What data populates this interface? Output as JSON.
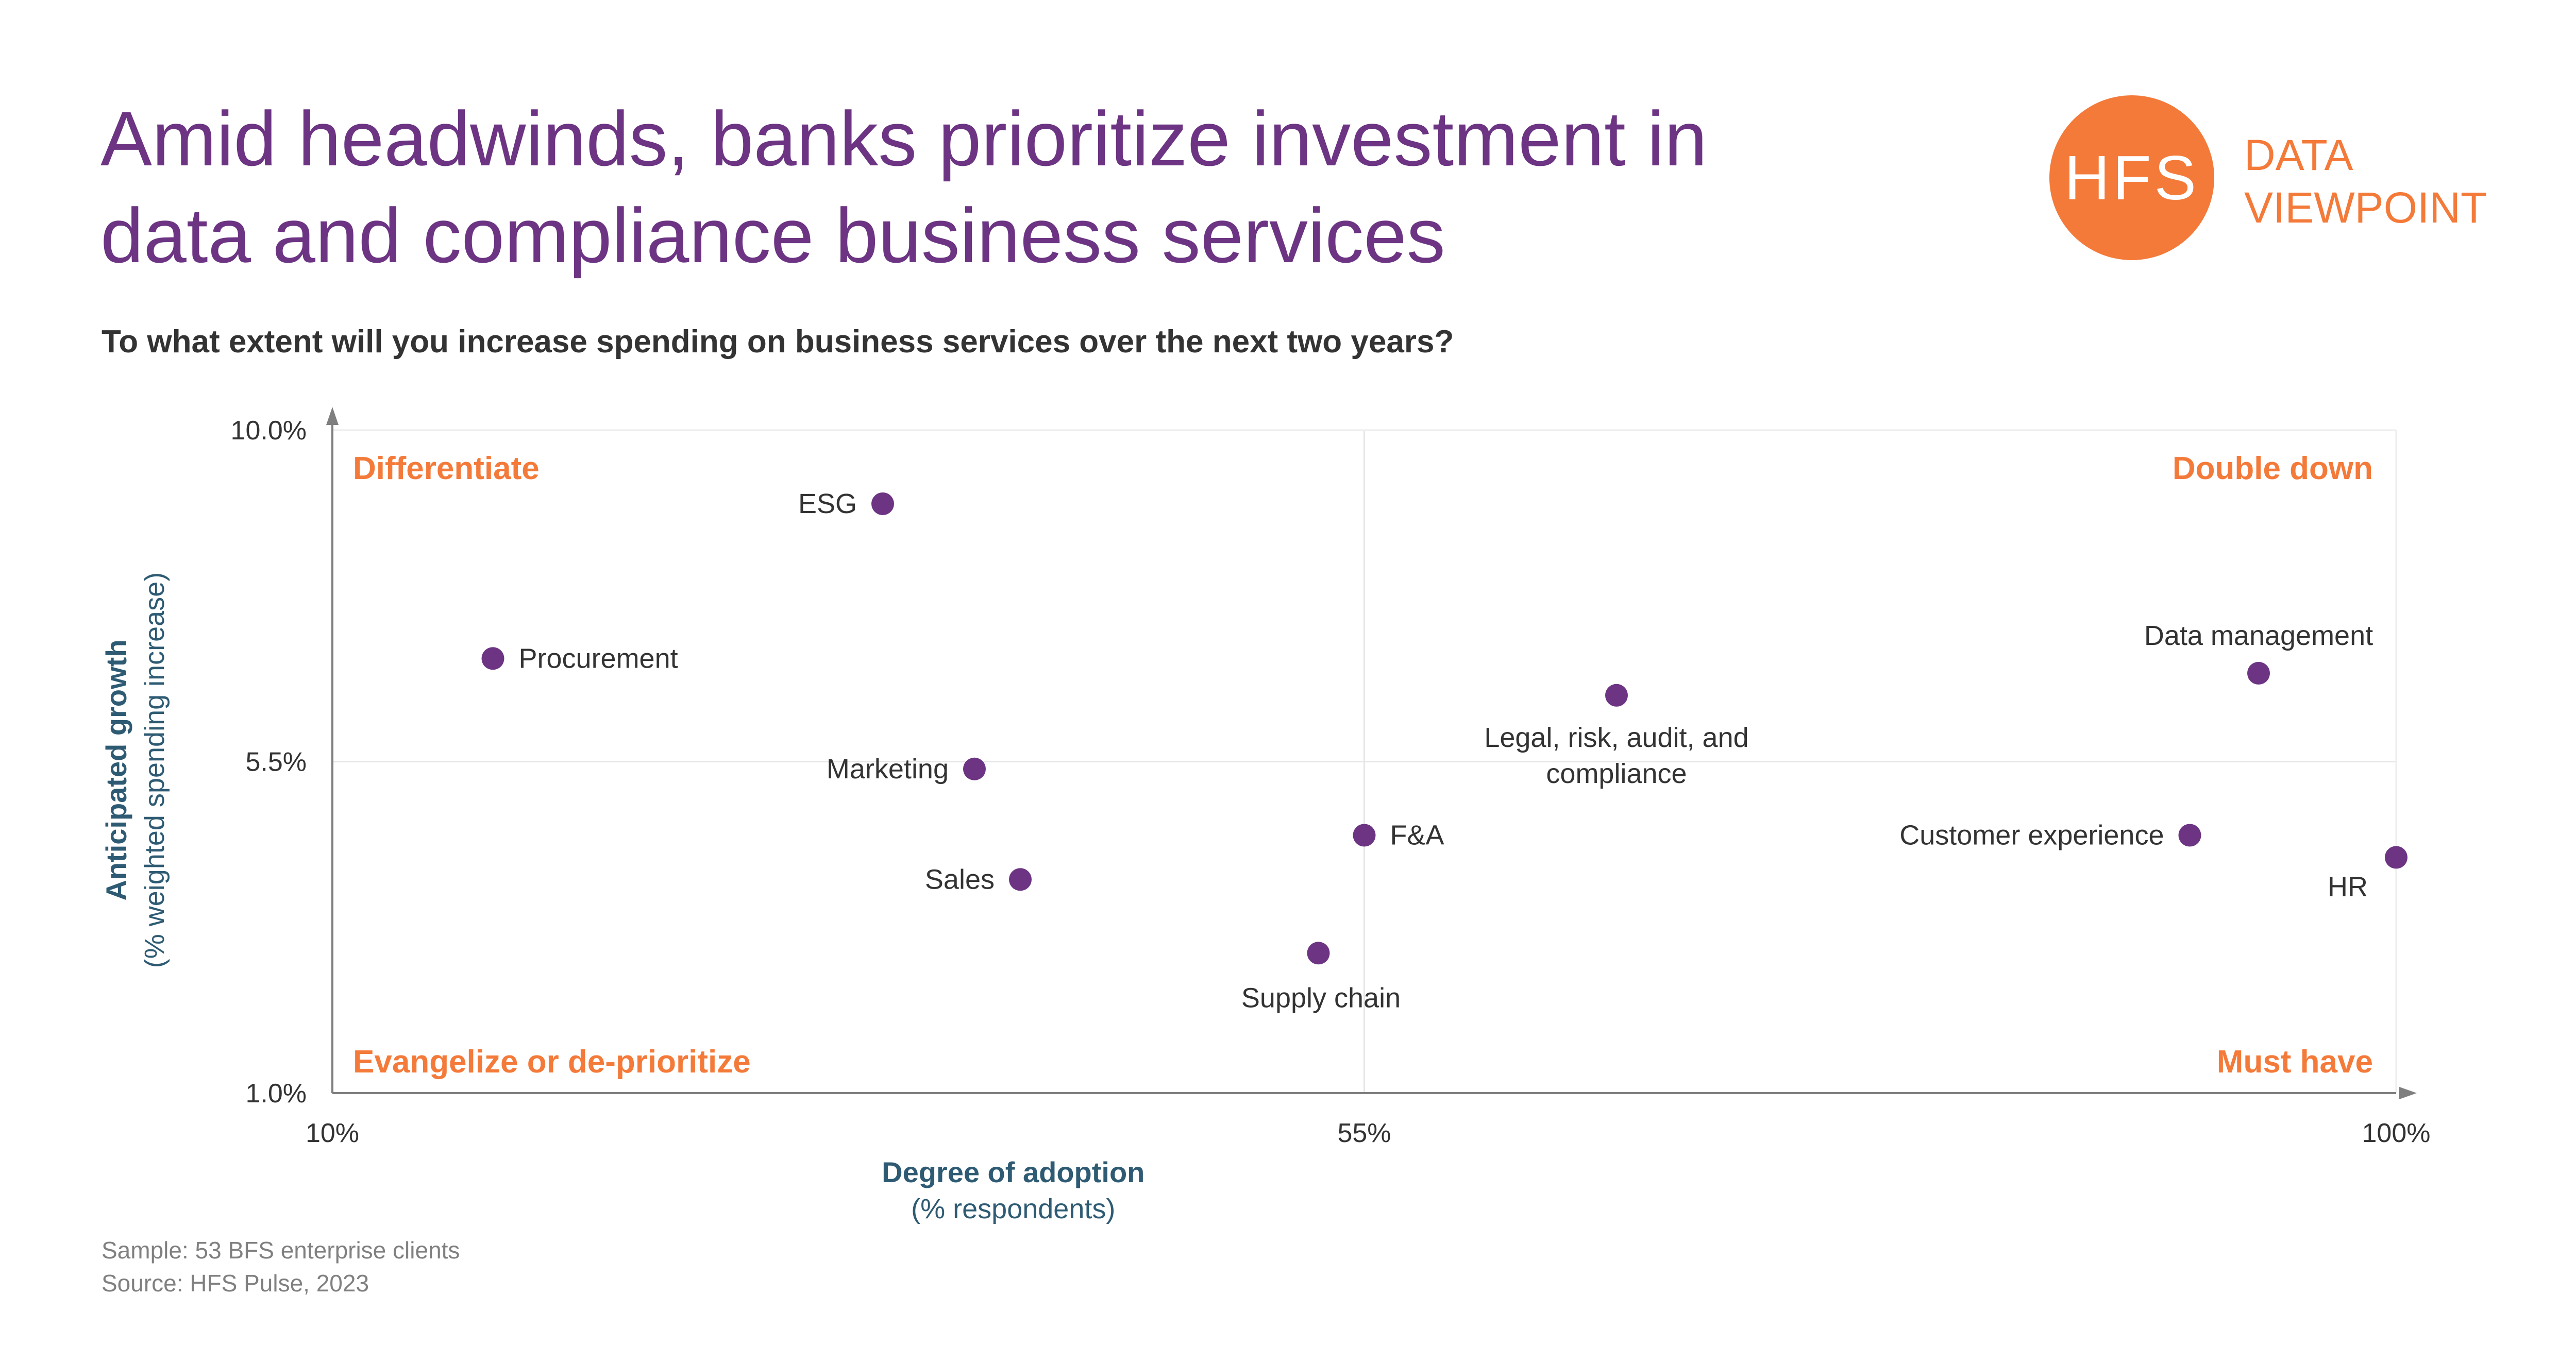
{
  "header": {
    "title_line1": "Amid headwinds, banks prioritize investment in",
    "title_line2": "data and compliance business services",
    "subtitle": "To what extent will you increase spending on business services over the next two years?"
  },
  "logo": {
    "mark": "HFS",
    "label_line1": "DATA",
    "label_line2": "VIEWPOINT",
    "color": "#f47a3a"
  },
  "footer": {
    "sample": "Sample: 53 BFS enterprise clients",
    "source": "Source: HFS Pulse, 2023"
  },
  "colors": {
    "title": "#6c3483",
    "point": "#6c3483",
    "quadrant_label": "#f47a3a",
    "axis_title": "#2e5b73"
  },
  "chart_data": {
    "type": "scatter",
    "xlabel": "Degree of adoption",
    "xlabel_sub": "(% respondents)",
    "ylabel": "Anticipated growth",
    "ylabel_sub": "(% weighted spending increase)",
    "xlim": [
      10,
      100
    ],
    "ylim": [
      1.0,
      10.0
    ],
    "x_ticks": [
      10,
      55,
      100
    ],
    "x_tick_labels": [
      "10%",
      "55%",
      "100%"
    ],
    "y_ticks": [
      1.0,
      5.5,
      10.0
    ],
    "y_tick_labels": [
      "1.0%",
      "5.5%",
      "10.0%"
    ],
    "grid": true,
    "quadrants": {
      "top_left": "Differentiate",
      "top_right": "Double down",
      "bottom_left": "Evangelize or de-prioritize",
      "bottom_right": "Must have"
    },
    "points": [
      {
        "label": "ESG",
        "x": 34,
        "y": 9.0,
        "pos": "left"
      },
      {
        "label": "Procurement",
        "x": 17,
        "y": 6.9,
        "pos": "right"
      },
      {
        "label": "Marketing",
        "x": 38,
        "y": 5.4,
        "pos": "left"
      },
      {
        "label": "Sales",
        "x": 40,
        "y": 3.9,
        "pos": "left"
      },
      {
        "label": "F&A",
        "x": 55,
        "y": 4.5,
        "pos": "right"
      },
      {
        "label": "Supply chain",
        "x": 53,
        "y": 2.9,
        "pos": "below"
      },
      {
        "label": "Legal, risk, audit, and compliance",
        "x": 66,
        "y": 6.4,
        "pos": "below2"
      },
      {
        "label": "Data management",
        "x": 94,
        "y": 6.7,
        "pos": "above"
      },
      {
        "label": "Customer experience",
        "x": 91,
        "y": 4.5,
        "pos": "left"
      },
      {
        "label": "HR",
        "x": 100,
        "y": 4.2,
        "pos": "belowleft"
      }
    ]
  }
}
